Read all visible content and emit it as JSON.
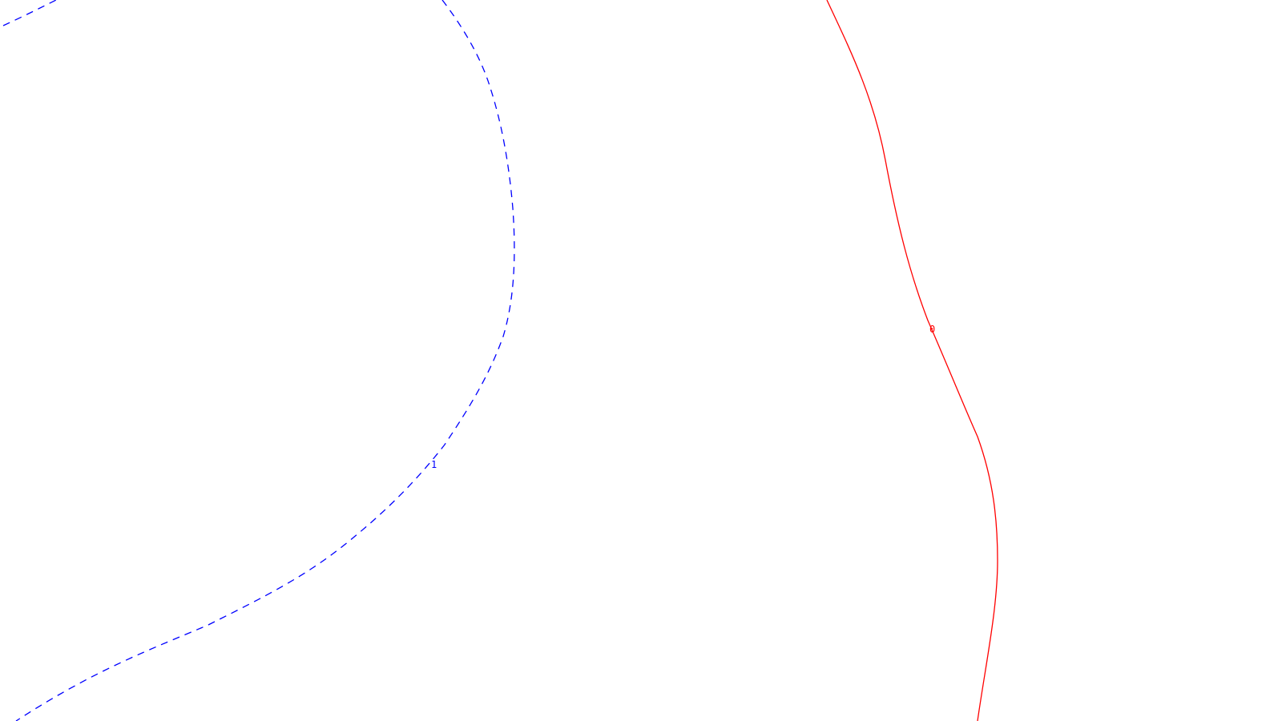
{
  "chart_data": {
    "type": "contour",
    "title": "",
    "xlabel": "",
    "ylabel": "",
    "grid": false,
    "legend": "none",
    "series": [
      {
        "level": "0",
        "color": "#ff0000",
        "style": "solid"
      },
      {
        "level": "1",
        "color": "#0000ff",
        "style": "dashed"
      }
    ]
  }
}
